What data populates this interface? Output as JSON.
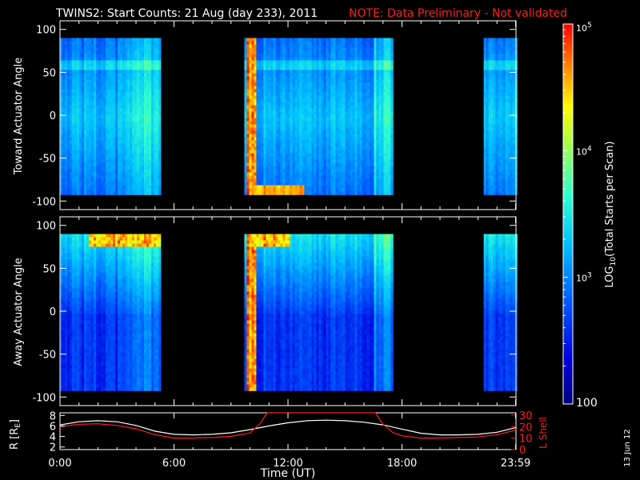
{
  "title": "TWINS2: Start Counts: 21 Aug (day 233), 2011",
  "note": "NOTE: Data Preliminary - Not validated",
  "side_date": "13 Jun 12",
  "colors": {
    "background": "#000000",
    "axes": "#ffffff",
    "note": "#ff2020",
    "r_line": "#ffffff",
    "lshell_line": "#ff2020"
  },
  "chart_data": [
    {
      "type": "heatmap",
      "panel": "top",
      "ylabel": "Toward Actuator Angle",
      "ylim": [
        -110,
        110
      ],
      "yticks": [
        -100,
        -50,
        0,
        50,
        100
      ],
      "xlim_hours": [
        0,
        24
      ],
      "data_blocks_hours": [
        [
          0,
          5.3
        ],
        [
          9.7,
          17.5
        ],
        [
          22.3,
          24
        ]
      ],
      "angle_range": [
        -90,
        90
      ]
    },
    {
      "type": "heatmap",
      "panel": "middle",
      "ylabel": "Away Actuator Angle",
      "ylim": [
        -110,
        110
      ],
      "yticks": [
        -100,
        -50,
        0,
        50,
        100
      ],
      "xlim_hours": [
        0,
        24
      ],
      "data_blocks_hours": [
        [
          0,
          5.3
        ],
        [
          9.7,
          17.5
        ],
        [
          22.3,
          24
        ]
      ],
      "angle_range": [
        -90,
        90
      ]
    },
    {
      "type": "line",
      "panel": "bottom",
      "xlabel": "Time (UT)",
      "xtick_labels": [
        "0:00",
        "6:00",
        "12:00",
        "18:00",
        "23:59"
      ],
      "xtick_hours": [
        0,
        6,
        12,
        18,
        23.98
      ],
      "ylabel_left": "R [R",
      "ylabel_left_sub": "E",
      "ylabel_left_end": "]",
      "yticks_left": [
        2,
        4,
        6,
        8
      ],
      "ylim_left": [
        1.5,
        8.5
      ],
      "ylabel_right": "L Shell",
      "yticks_right": [
        0,
        10,
        20,
        30
      ],
      "ylim_right": [
        0,
        32
      ],
      "series": [
        {
          "axis": "left",
          "color": "#ffffff",
          "x": [
            0,
            1,
            2,
            3,
            4,
            5,
            6,
            7,
            8,
            9,
            10,
            11,
            12,
            13,
            14,
            15,
            16,
            17,
            18,
            19,
            20,
            21,
            22,
            23,
            24
          ],
          "y": [
            6.2,
            6.8,
            7.0,
            6.8,
            6.1,
            5.0,
            4.4,
            4.3,
            4.4,
            4.7,
            5.3,
            6.0,
            6.6,
            7.0,
            7.1,
            7.0,
            6.7,
            6.2,
            5.4,
            4.6,
            4.3,
            4.3,
            4.4,
            4.8,
            5.7
          ]
        },
        {
          "axis": "right",
          "color": "#ff2020",
          "x": [
            0,
            1,
            2,
            3,
            4,
            5,
            6,
            7,
            8,
            9,
            10,
            10.5,
            10.9,
            16.6,
            17,
            17.5,
            18,
            19,
            20,
            21,
            22,
            23,
            24
          ],
          "y": [
            20,
            22,
            22.5,
            21,
            18,
            13,
            10,
            10,
            10.5,
            11.5,
            14.5,
            22,
            32,
            32,
            22,
            15,
            12,
            10,
            10,
            10.5,
            11,
            13,
            17
          ]
        }
      ]
    }
  ],
  "colorbar": {
    "label_prefix": "LOG",
    "label_sub": "10",
    "label_suffix": "(Total Starts per Scan)",
    "ticks": [
      {
        "base": "10",
        "exp": "5"
      },
      {
        "base": "10",
        "exp": "4"
      },
      {
        "base": "10",
        "exp": "3"
      }
    ],
    "bottom_label": "100",
    "range_log": [
      2,
      5
    ]
  }
}
